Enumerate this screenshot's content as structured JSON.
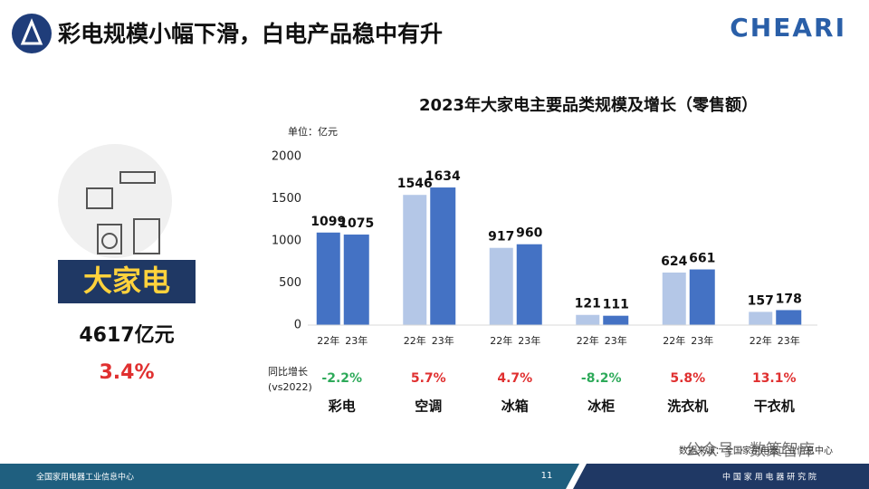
{
  "header": {
    "title": "彩电规模小幅下滑，白电产品稳中有升",
    "logo": "CHEARI"
  },
  "summary": {
    "label": "大家电",
    "total": "4617亿元",
    "growth": "3.4%"
  },
  "chart_data": {
    "type": "bar",
    "title": "2023年大家电主要品类规模及增长（零售额）",
    "unit": "单位：亿元",
    "categories": [
      "彩电",
      "空调",
      "冰箱",
      "冰柜",
      "洗衣机",
      "干衣机"
    ],
    "series": [
      {
        "name": "22年",
        "color": "#b4c7e7",
        "colors": [
          "#4472c4",
          "#b4c7e7",
          "#b4c7e7",
          "#b4c7e7",
          "#b4c7e7",
          "#b4c7e7"
        ],
        "values": [
          1099,
          1546,
          917,
          121,
          624,
          157
        ]
      },
      {
        "name": "23年",
        "color": "#4472c4",
        "values": [
          1075,
          1634,
          960,
          111,
          661,
          178
        ]
      }
    ],
    "ylim": [
      0,
      2000
    ],
    "yticks": [
      0,
      500,
      1000,
      1500,
      2000
    ],
    "grid": false,
    "growth": {
      "label": [
        "同比增长",
        "(vs2022)"
      ],
      "values": [
        -2.2,
        5.7,
        4.7,
        -8.2,
        5.8,
        13.1
      ],
      "value_labels": [
        "-2.2%",
        "5.7%",
        "4.7%",
        "-8.2%",
        "5.8%",
        "13.1%"
      ],
      "negative_color": "#2eaa5a",
      "positive_color": "#e03030"
    }
  },
  "source": "数据来源：全国家用电器工业信息中心",
  "watermark": "公众号 · 数策智库",
  "footer": {
    "left": "全国家用电器工业信息中心",
    "page": "11",
    "right": "中 国 家 用 电 器 研 究 院"
  }
}
